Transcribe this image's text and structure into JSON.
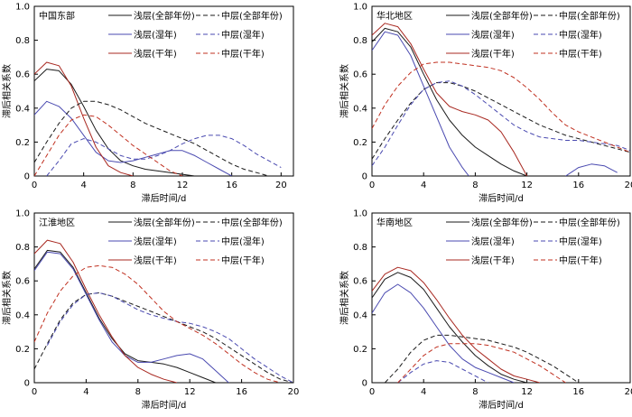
{
  "chart_data": [
    {
      "type": "line",
      "title": "中国东部",
      "xlabel": "滞后时间/d",
      "ylabel": "滞后相关系数",
      "xlim": [
        0,
        21
      ],
      "ylim": [
        0,
        1.0
      ],
      "xticks": [
        "0",
        "4",
        "8",
        "12",
        "16",
        "20"
      ],
      "yticks": [
        "0",
        "0.2",
        "0.4",
        "0.6",
        "0.8",
        "1.0"
      ],
      "series": [
        {
          "name": "浅层(全部年份)",
          "color": "#1a1a1a",
          "dash": false,
          "x": [
            0,
            1,
            2,
            3,
            4,
            5,
            6,
            7,
            8,
            9,
            10,
            11,
            12,
            13
          ],
          "y": [
            0.56,
            0.63,
            0.62,
            0.54,
            0.41,
            0.27,
            0.16,
            0.09,
            0.06,
            0.04,
            0.03,
            0.02,
            0.01,
            0.0
          ]
        },
        {
          "name": "浅层(湿年)",
          "color": "#4a4ab0",
          "dash": false,
          "x": [
            0,
            1,
            2,
            3,
            4,
            5,
            6,
            7,
            8,
            9,
            10,
            11,
            12,
            13,
            14,
            15,
            16
          ],
          "y": [
            0.36,
            0.44,
            0.41,
            0.34,
            0.24,
            0.14,
            0.09,
            0.08,
            0.09,
            0.11,
            0.13,
            0.15,
            0.15,
            0.12,
            0.08,
            0.04,
            0.0
          ]
        },
        {
          "name": "浅层(干年)",
          "color": "#a82820",
          "dash": false,
          "x": [
            0,
            1,
            2,
            3,
            4,
            5,
            6,
            7,
            8
          ],
          "y": [
            0.6,
            0.67,
            0.65,
            0.53,
            0.34,
            0.17,
            0.06,
            0.02,
            0.0
          ]
        },
        {
          "name": "中层(全部年份)",
          "color": "#1a1a1a",
          "dash": true,
          "x": [
            0,
            1,
            2,
            3,
            4,
            5,
            6,
            7,
            8,
            9,
            10,
            11,
            12,
            13,
            14,
            15,
            16,
            17,
            18,
            19
          ],
          "y": [
            0.08,
            0.2,
            0.31,
            0.4,
            0.44,
            0.44,
            0.42,
            0.39,
            0.35,
            0.31,
            0.28,
            0.25,
            0.22,
            0.19,
            0.15,
            0.11,
            0.07,
            0.04,
            0.02,
            0.0
          ]
        },
        {
          "name": "中层(湿年)",
          "color": "#4a4ab0",
          "dash": true,
          "x": [
            1,
            2,
            3,
            4,
            5,
            6,
            7,
            8,
            9,
            10,
            11,
            12,
            13,
            14,
            15,
            16,
            17,
            18,
            19,
            20
          ],
          "y": [
            0.0,
            0.09,
            0.19,
            0.22,
            0.2,
            0.16,
            0.12,
            0.1,
            0.1,
            0.12,
            0.15,
            0.19,
            0.22,
            0.24,
            0.24,
            0.22,
            0.18,
            0.13,
            0.09,
            0.05
          ]
        },
        {
          "name": "中层(干年)",
          "color": "#c03020",
          "dash": true,
          "x": [
            0,
            1,
            2,
            3,
            4,
            5,
            6,
            7,
            8,
            9,
            10,
            11,
            12
          ],
          "y": [
            0.0,
            0.12,
            0.24,
            0.33,
            0.36,
            0.35,
            0.3,
            0.24,
            0.18,
            0.13,
            0.08,
            0.03,
            0.0
          ]
        }
      ]
    },
    {
      "type": "line",
      "title": "华北地区",
      "xlabel": "滞后时间/d",
      "ylabel": "滞后相关系数",
      "xlim": [
        0,
        20
      ],
      "ylim": [
        0,
        1.0
      ],
      "xticks": [
        "0",
        "4",
        "8",
        "12",
        "16",
        "20"
      ],
      "yticks": [
        "0",
        "0.2",
        "0.4",
        "0.6",
        "0.8",
        "1.0"
      ],
      "series": [
        {
          "name": "浅层(全部年份)",
          "color": "#1a1a1a",
          "dash": false,
          "x": [
            0,
            1,
            2,
            3,
            4,
            5,
            6,
            7,
            8,
            9,
            10,
            11,
            12
          ],
          "y": [
            0.79,
            0.87,
            0.85,
            0.76,
            0.6,
            0.45,
            0.33,
            0.24,
            0.17,
            0.12,
            0.07,
            0.03,
            0.0
          ]
        },
        {
          "name": "浅层(湿年)",
          "color": "#4a4ab0",
          "dash": false,
          "x": [
            0,
            1,
            2,
            3,
            4,
            5,
            6,
            7,
            7.5
          ],
          "y": [
            0.74,
            0.85,
            0.83,
            0.71,
            0.53,
            0.35,
            0.17,
            0.05,
            0.0
          ]
        },
        {
          "name": "浅层(湿年)",
          "color": "#4a4ab0",
          "dash": false,
          "x": [
            15,
            16,
            17,
            18,
            19
          ],
          "y": [
            0.0,
            0.05,
            0.07,
            0.06,
            0.02
          ]
        },
        {
          "name": "浅层(干年)",
          "color": "#a82820",
          "dash": false,
          "x": [
            0,
            1,
            2,
            3,
            4,
            5,
            6,
            7,
            8,
            9,
            10,
            11,
            12
          ],
          "y": [
            0.83,
            0.9,
            0.88,
            0.78,
            0.63,
            0.49,
            0.41,
            0.38,
            0.36,
            0.33,
            0.26,
            0.14,
            0.0
          ]
        },
        {
          "name": "中层(全部年份)",
          "color": "#1a1a1a",
          "dash": true,
          "x": [
            0,
            1,
            2,
            3,
            4,
            5,
            6,
            7,
            8,
            9,
            10,
            11,
            12,
            13,
            14,
            15,
            16,
            17,
            18,
            19,
            20
          ],
          "y": [
            0.1,
            0.22,
            0.33,
            0.43,
            0.51,
            0.55,
            0.55,
            0.53,
            0.5,
            0.46,
            0.42,
            0.38,
            0.34,
            0.3,
            0.27,
            0.24,
            0.22,
            0.2,
            0.18,
            0.16,
            0.14
          ]
        },
        {
          "name": "中层(湿年)",
          "color": "#4a4ab0",
          "dash": true,
          "x": [
            0,
            1,
            2,
            3,
            4,
            5,
            6,
            7,
            8,
            9,
            10,
            11,
            12,
            13,
            14,
            15,
            16,
            17,
            18,
            19,
            20
          ],
          "y": [
            0.06,
            0.17,
            0.3,
            0.42,
            0.51,
            0.55,
            0.56,
            0.53,
            0.48,
            0.42,
            0.36,
            0.3,
            0.26,
            0.23,
            0.22,
            0.21,
            0.21,
            0.2,
            0.19,
            0.18,
            0.15
          ]
        },
        {
          "name": "中层(干年)",
          "color": "#c03020",
          "dash": true,
          "x": [
            0,
            1,
            2,
            3,
            4,
            5,
            6,
            7,
            8,
            9,
            10,
            11,
            12,
            13,
            14,
            15,
            16,
            17,
            18,
            19,
            20
          ],
          "y": [
            0.28,
            0.42,
            0.53,
            0.61,
            0.66,
            0.67,
            0.67,
            0.66,
            0.65,
            0.64,
            0.62,
            0.58,
            0.52,
            0.45,
            0.37,
            0.3,
            0.26,
            0.23,
            0.2,
            0.17,
            0.14
          ]
        }
      ]
    },
    {
      "type": "line",
      "title": "江淮地区",
      "xlabel": "滞后时间/d",
      "ylabel": "滞后相关系数",
      "xlim": [
        0,
        20
      ],
      "ylim": [
        0,
        1.0
      ],
      "xticks": [
        "0",
        "4",
        "8",
        "12",
        "16",
        "20"
      ],
      "yticks": [
        "0",
        "0.2",
        "0.4",
        "0.6",
        "0.8",
        "1.0"
      ],
      "series": [
        {
          "name": "浅层(全部年份)",
          "color": "#1a1a1a",
          "dash": false,
          "x": [
            0,
            1,
            2,
            3,
            4,
            5,
            6,
            7,
            8,
            9,
            10,
            11,
            12,
            13,
            14
          ],
          "y": [
            0.67,
            0.78,
            0.77,
            0.68,
            0.53,
            0.38,
            0.26,
            0.17,
            0.13,
            0.12,
            0.11,
            0.09,
            0.06,
            0.03,
            0.0
          ]
        },
        {
          "name": "浅层(湿年)",
          "color": "#4a4ab0",
          "dash": false,
          "x": [
            0,
            1,
            2,
            3,
            4,
            5,
            6,
            7,
            8,
            9,
            10,
            11,
            12,
            13,
            14,
            15
          ],
          "y": [
            0.66,
            0.77,
            0.76,
            0.67,
            0.52,
            0.37,
            0.24,
            0.16,
            0.12,
            0.12,
            0.14,
            0.16,
            0.17,
            0.14,
            0.07,
            0.0
          ]
        },
        {
          "name": "浅层(干年)",
          "color": "#a82820",
          "dash": false,
          "x": [
            0,
            1,
            2,
            3,
            4,
            5,
            6,
            7,
            8,
            9,
            10,
            11
          ],
          "y": [
            0.76,
            0.84,
            0.82,
            0.71,
            0.55,
            0.4,
            0.27,
            0.16,
            0.09,
            0.05,
            0.02,
            0.0
          ]
        },
        {
          "name": "中层(全部年份)",
          "color": "#1a1a1a",
          "dash": true,
          "x": [
            0,
            1,
            2,
            3,
            4,
            5,
            6,
            7,
            8,
            9,
            10,
            11,
            12,
            13,
            14,
            15,
            16,
            17,
            18,
            19,
            20
          ],
          "y": [
            0.08,
            0.23,
            0.37,
            0.47,
            0.52,
            0.53,
            0.51,
            0.48,
            0.45,
            0.42,
            0.39,
            0.36,
            0.33,
            0.3,
            0.26,
            0.21,
            0.16,
            0.11,
            0.06,
            0.02,
            0.0
          ]
        },
        {
          "name": "中层(湿年)",
          "color": "#4a4ab0",
          "dash": true,
          "x": [
            1,
            2,
            3,
            4,
            5,
            6,
            7,
            8,
            9,
            10,
            11,
            12,
            13,
            14,
            15,
            16,
            17,
            18,
            19,
            20
          ],
          "y": [
            0.22,
            0.36,
            0.46,
            0.52,
            0.53,
            0.51,
            0.47,
            0.43,
            0.4,
            0.38,
            0.36,
            0.35,
            0.33,
            0.3,
            0.26,
            0.2,
            0.14,
            0.09,
            0.04,
            0.0
          ]
        },
        {
          "name": "中层(干年)",
          "color": "#c03020",
          "dash": true,
          "x": [
            0,
            1,
            2,
            3,
            4,
            5,
            6,
            7,
            8,
            9,
            10,
            11,
            12,
            13,
            14,
            15,
            16,
            17,
            18,
            19
          ],
          "y": [
            0.24,
            0.41,
            0.54,
            0.63,
            0.68,
            0.69,
            0.68,
            0.64,
            0.58,
            0.5,
            0.42,
            0.36,
            0.32,
            0.28,
            0.23,
            0.17,
            0.11,
            0.06,
            0.02,
            0.0
          ]
        }
      ]
    },
    {
      "type": "line",
      "title": "华南地区",
      "xlabel": "滞后时间/d",
      "ylabel": "滞后相关系数",
      "xlim": [
        0,
        20
      ],
      "ylim": [
        0,
        1.0
      ],
      "xticks": [
        "0",
        "4",
        "8",
        "12",
        "16",
        "20"
      ],
      "yticks": [
        "0",
        "0.2",
        "0.4",
        "0.6",
        "0.8",
        "1.0"
      ],
      "series": [
        {
          "name": "浅层(全部年份)",
          "color": "#1a1a1a",
          "dash": false,
          "x": [
            0,
            1,
            2,
            3,
            4,
            5,
            6,
            7,
            8,
            9,
            10,
            11,
            12
          ],
          "y": [
            0.5,
            0.61,
            0.65,
            0.62,
            0.55,
            0.44,
            0.33,
            0.24,
            0.16,
            0.1,
            0.05,
            0.02,
            0.0
          ]
        },
        {
          "name": "浅层(湿年)",
          "color": "#4a4ab0",
          "dash": false,
          "x": [
            0,
            1,
            2,
            3,
            4,
            5,
            6,
            7,
            8,
            9,
            10,
            11
          ],
          "y": [
            0.41,
            0.53,
            0.58,
            0.53,
            0.44,
            0.33,
            0.22,
            0.14,
            0.09,
            0.06,
            0.03,
            0.0
          ]
        },
        {
          "name": "浅层(干年)",
          "color": "#a82820",
          "dash": false,
          "x": [
            0,
            1,
            2,
            3,
            4,
            5,
            6,
            7,
            8,
            9,
            10,
            11,
            12,
            13
          ],
          "y": [
            0.54,
            0.64,
            0.68,
            0.66,
            0.59,
            0.49,
            0.38,
            0.28,
            0.2,
            0.14,
            0.08,
            0.04,
            0.02,
            0.0
          ]
        },
        {
          "name": "中层(全部年份)",
          "color": "#1a1a1a",
          "dash": true,
          "x": [
            1,
            2,
            3,
            4,
            5,
            6,
            7,
            8,
            9,
            10,
            11,
            12,
            13,
            14,
            15,
            16
          ],
          "y": [
            0.0,
            0.08,
            0.18,
            0.25,
            0.28,
            0.28,
            0.27,
            0.26,
            0.25,
            0.23,
            0.21,
            0.18,
            0.14,
            0.1,
            0.05,
            0.0
          ]
        },
        {
          "name": "中层(湿年)",
          "color": "#4a4ab0",
          "dash": true,
          "x": [
            2,
            3,
            4,
            5,
            6,
            7,
            8,
            9
          ],
          "y": [
            0.0,
            0.06,
            0.11,
            0.13,
            0.12,
            0.08,
            0.04,
            0.0
          ]
        },
        {
          "name": "中层(干年)",
          "color": "#c03020",
          "dash": true,
          "x": [
            2,
            3,
            4,
            5,
            6,
            7,
            8,
            9,
            10,
            11,
            12,
            13,
            14,
            15
          ],
          "y": [
            0.0,
            0.08,
            0.16,
            0.21,
            0.23,
            0.23,
            0.23,
            0.22,
            0.2,
            0.18,
            0.14,
            0.1,
            0.05,
            0.0
          ]
        }
      ]
    }
  ],
  "legend": {
    "items": [
      {
        "label": "浅层(全部年份)",
        "color": "#1a1a1a",
        "dash": false
      },
      {
        "label": "中层(全部年份)",
        "color": "#1a1a1a",
        "dash": true
      },
      {
        "label": "浅层(湿年)",
        "color": "#4a4ab0",
        "dash": false
      },
      {
        "label": "中层(湿年)",
        "color": "#4a4ab0",
        "dash": true
      },
      {
        "label": "浅层(干年)",
        "color": "#a82820",
        "dash": false
      },
      {
        "label": "中层(干年)",
        "color": "#c03020",
        "dash": true
      }
    ]
  }
}
